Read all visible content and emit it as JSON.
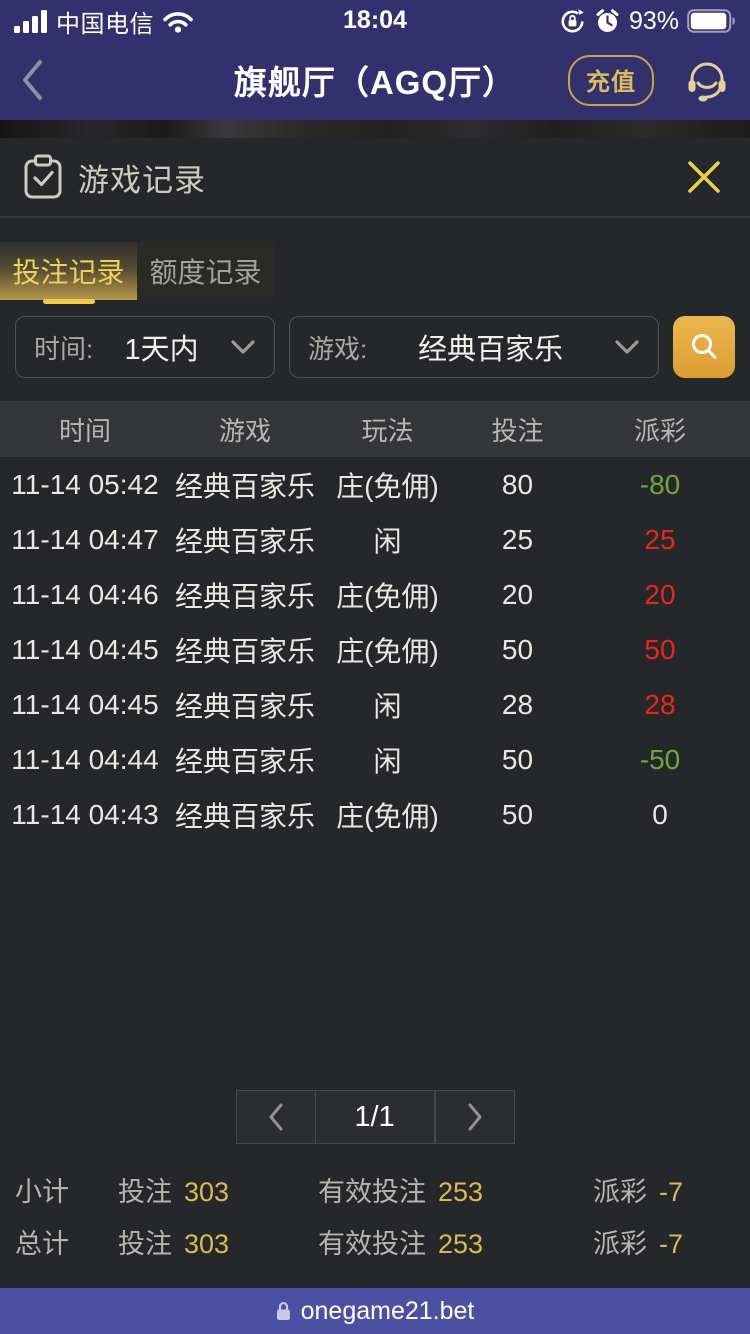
{
  "status_bar": {
    "carrier": "中国电信",
    "time": "18:04",
    "battery_percent": "93%"
  },
  "nav": {
    "title": "旗舰厅（AGQ厅）",
    "recharge_label": "充值"
  },
  "modal": {
    "title": "游戏记录",
    "tabs": [
      {
        "label": "投注记录",
        "state": "active"
      },
      {
        "label": "额度记录",
        "state": "inactive"
      }
    ],
    "filters": {
      "time_label": "时间:",
      "time_value": "1天内",
      "game_label": "游戏:",
      "game_value": "经典百家乐"
    },
    "table": {
      "headers": [
        "时间",
        "游戏",
        "玩法",
        "投注",
        "派彩"
      ],
      "rows": [
        {
          "time": "11-14 05:42",
          "game": "经典百家乐",
          "play": "庄(免佣)",
          "bet": "80",
          "payout": "-80",
          "payout_class": "payout-green"
        },
        {
          "time": "11-14 04:47",
          "game": "经典百家乐",
          "play": "闲",
          "bet": "25",
          "payout": "25",
          "payout_class": "payout-red"
        },
        {
          "time": "11-14 04:46",
          "game": "经典百家乐",
          "play": "庄(免佣)",
          "bet": "20",
          "payout": "20",
          "payout_class": "payout-red"
        },
        {
          "time": "11-14 04:45",
          "game": "经典百家乐",
          "play": "庄(免佣)",
          "bet": "50",
          "payout": "50",
          "payout_class": "payout-red"
        },
        {
          "time": "11-14 04:45",
          "game": "经典百家乐",
          "play": "闲",
          "bet": "28",
          "payout": "28",
          "payout_class": "payout-red"
        },
        {
          "time": "11-14 04:44",
          "game": "经典百家乐",
          "play": "闲",
          "bet": "50",
          "payout": "-50",
          "payout_class": "payout-green"
        },
        {
          "time": "11-14 04:43",
          "game": "经典百家乐",
          "play": "庄(免佣)",
          "bet": "50",
          "payout": "0",
          "payout_class": "payout-neutral"
        }
      ]
    },
    "pagination": {
      "current": "1/1"
    },
    "summary": [
      {
        "name": "小计",
        "bet_label": "投注",
        "bet": "303",
        "valid_label": "有效投注",
        "valid": "253",
        "payout_label": "派彩",
        "payout": "-7"
      },
      {
        "name": "总计",
        "bet_label": "投注",
        "bet": "303",
        "valid_label": "有效投注",
        "valid": "253",
        "payout_label": "派彩",
        "payout": "-7"
      }
    ]
  },
  "browser_bar": {
    "url": "onegame21.bet"
  },
  "colors": {
    "accent_gold": "#d9ba52",
    "nav_indigo": "#32316e",
    "browser_purple": "#4b51a2",
    "win_red": "#e8271b",
    "loss_green": "#69a83e"
  }
}
